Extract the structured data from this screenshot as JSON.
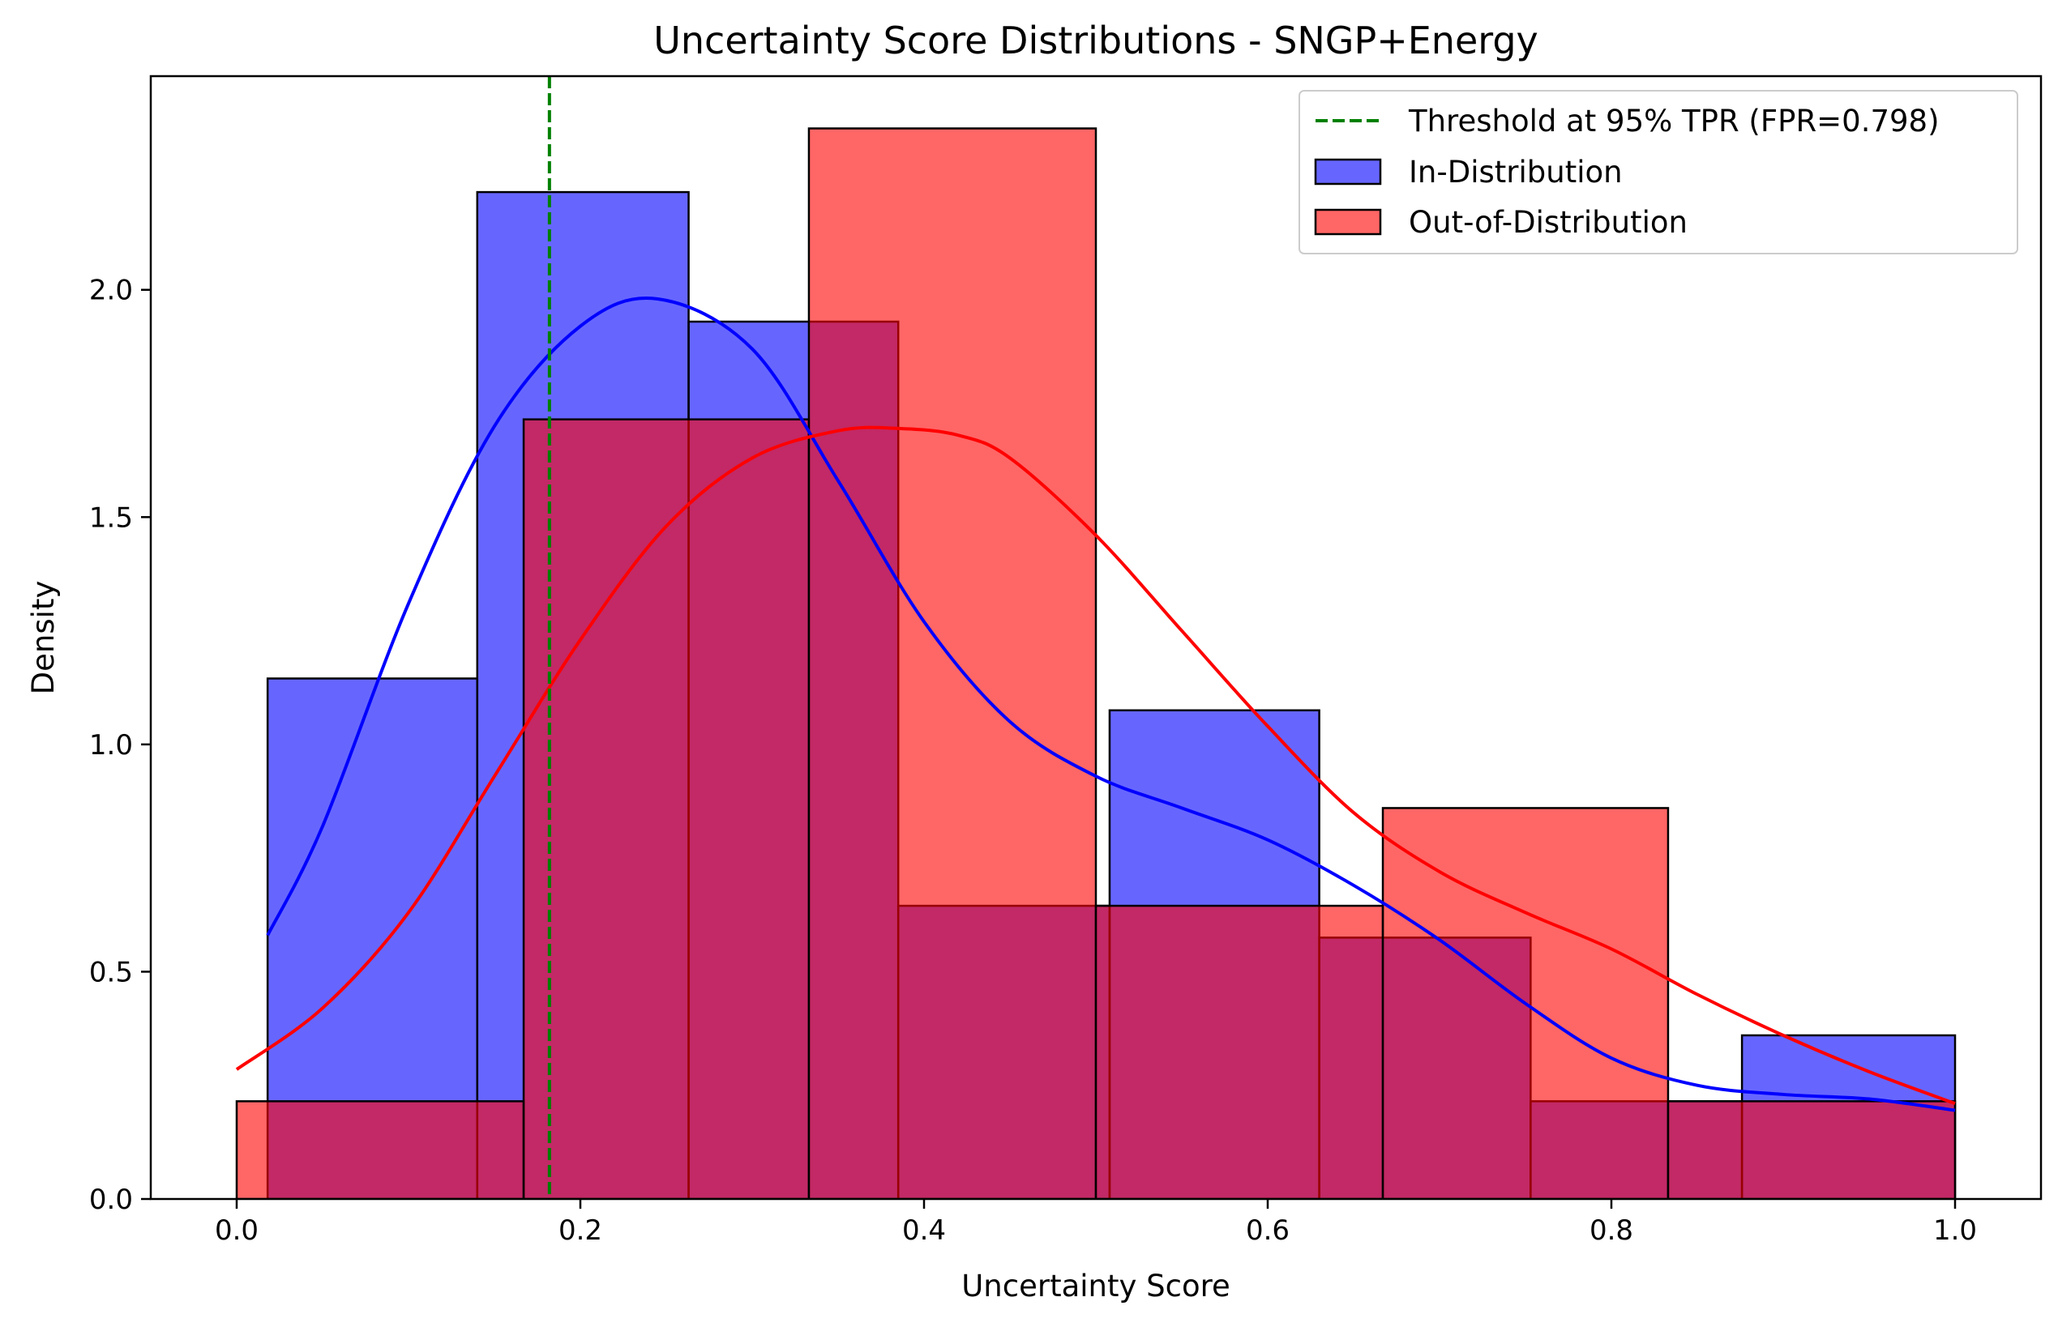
{
  "chart_data": {
    "type": "histogram",
    "title": "Uncertainty Score Distributions - SNGP+Energy",
    "xlabel": "Uncertainty Score",
    "ylabel": "Density",
    "xlim": [
      -0.05,
      1.05
    ],
    "ylim": [
      0,
      2.47
    ],
    "x_ticks": [
      0.0,
      0.2,
      0.4,
      0.6,
      0.8,
      1.0
    ],
    "x_tick_labels": [
      "0.0",
      "0.2",
      "0.4",
      "0.6",
      "0.8",
      "1.0"
    ],
    "y_ticks": [
      0.0,
      0.5,
      1.0,
      1.5,
      2.0
    ],
    "y_tick_labels": [
      "0.0",
      "0.5",
      "1.0",
      "1.5",
      "2.0"
    ],
    "grid": false,
    "legend_position": "top-right",
    "threshold": {
      "label": "Threshold at 95% TPR (FPR=0.798)",
      "x": 0.182,
      "color": "#008000",
      "style": "dashed"
    },
    "series": [
      {
        "name": "In-Distribution",
        "color": "#0000ff",
        "bin_edges": [
          0.018,
          0.14,
          0.263,
          0.385,
          0.508,
          0.63,
          0.753,
          0.876,
          1.0
        ],
        "density": [
          1.145,
          2.215,
          1.93,
          0.645,
          1.075,
          0.575,
          0.215,
          0.36
        ],
        "kde_x": [
          0.018,
          0.05,
          0.1,
          0.15,
          0.2,
          0.245,
          0.3,
          0.35,
          0.4,
          0.45,
          0.5,
          0.55,
          0.6,
          0.65,
          0.7,
          0.75,
          0.8,
          0.85,
          0.9,
          0.95,
          1.0
        ],
        "kde_y": [
          0.58,
          0.82,
          1.31,
          1.7,
          1.92,
          1.98,
          1.87,
          1.58,
          1.27,
          1.05,
          0.93,
          0.86,
          0.79,
          0.69,
          0.57,
          0.43,
          0.31,
          0.25,
          0.23,
          0.22,
          0.195
        ]
      },
      {
        "name": "Out-of-Distribution",
        "color": "#ff0000",
        "bin_edges": [
          0.0,
          0.167,
          0.333,
          0.5,
          0.667,
          0.833,
          1.0
        ],
        "density": [
          0.215,
          1.715,
          2.355,
          0.645,
          0.86,
          0.215
        ],
        "kde_x": [
          0.0,
          0.05,
          0.1,
          0.15,
          0.2,
          0.25,
          0.3,
          0.35,
          0.385,
          0.42,
          0.45,
          0.5,
          0.55,
          0.6,
          0.65,
          0.7,
          0.75,
          0.8,
          0.85,
          0.9,
          0.95,
          1.0
        ],
        "kde_y": [
          0.285,
          0.42,
          0.63,
          0.93,
          1.23,
          1.48,
          1.63,
          1.69,
          1.695,
          1.68,
          1.63,
          1.46,
          1.25,
          1.04,
          0.85,
          0.72,
          0.63,
          0.55,
          0.45,
          0.36,
          0.28,
          0.21
        ]
      }
    ]
  }
}
